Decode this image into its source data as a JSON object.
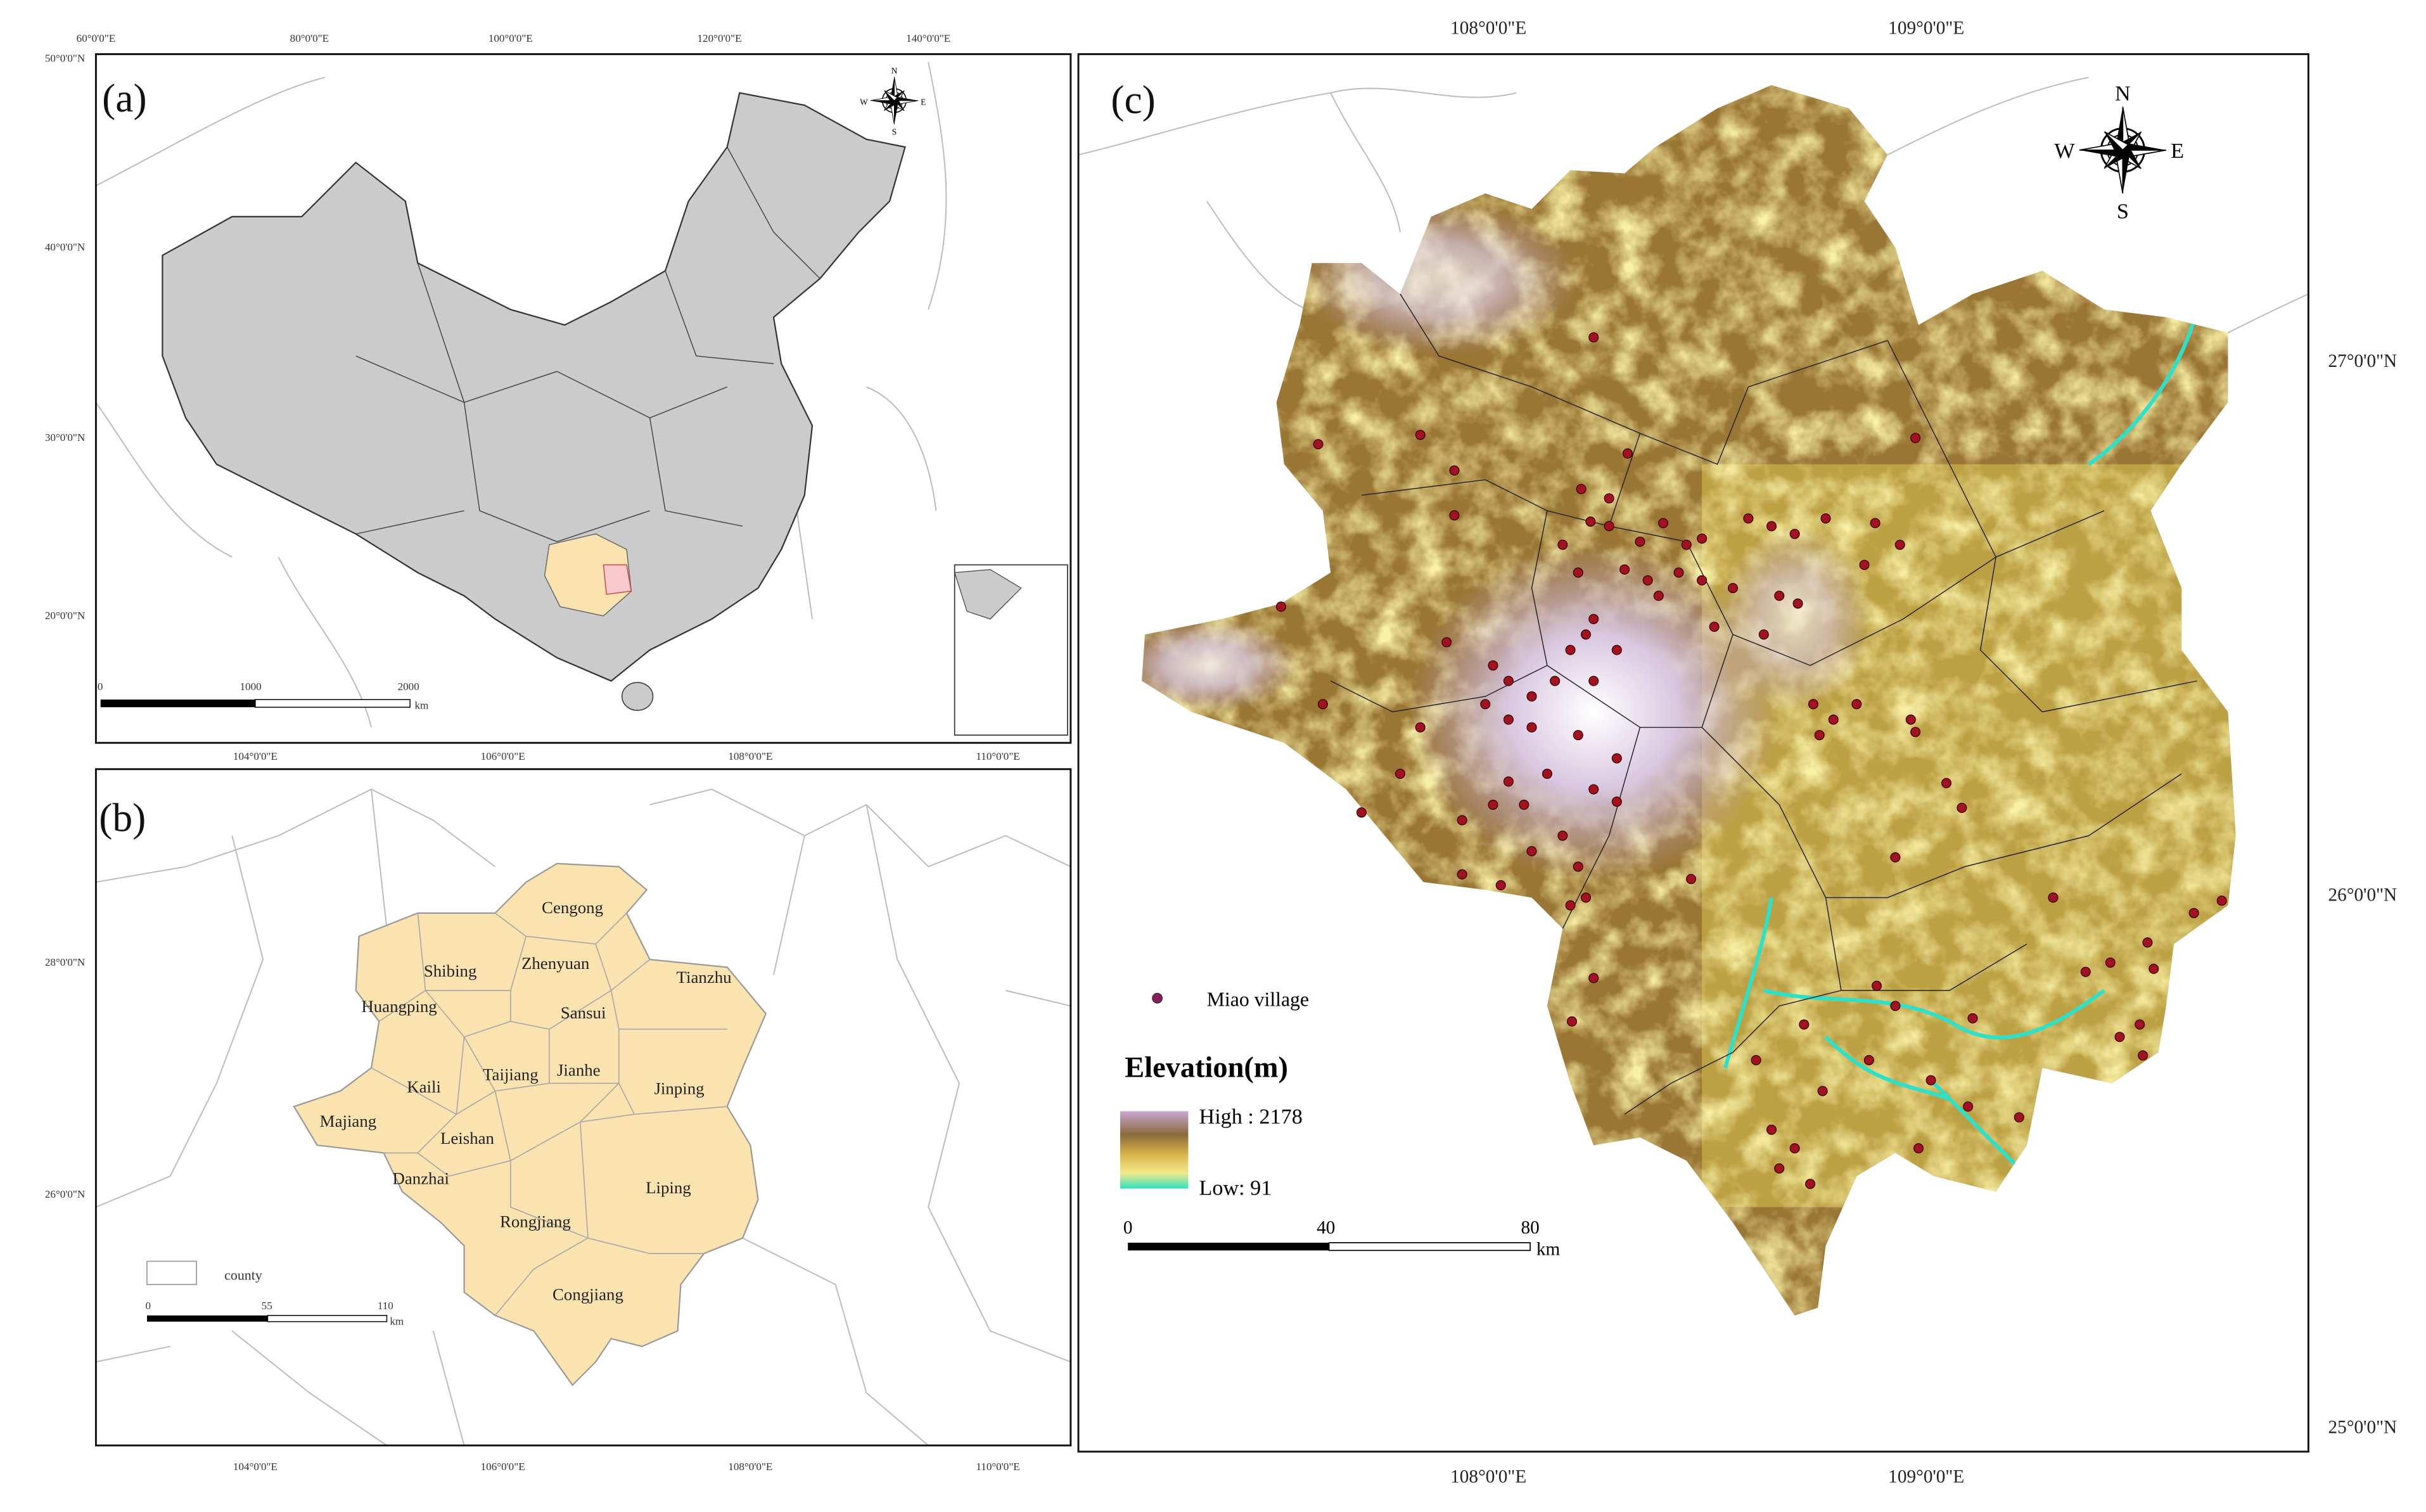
{
  "panel_a": {
    "label": "(a)",
    "lon_labels": [
      "60°0'0\"E",
      "80°0'0\"E",
      "100°0'0\"E",
      "120°0'0\"E",
      "140°0'0\"E"
    ],
    "lat_labels": [
      "50°0'0\"N",
      "40°0'0\"N",
      "30°0'0\"N",
      "20°0'0\"N"
    ],
    "compass": {
      "n": "N",
      "w": "W",
      "e": "E",
      "s": "S"
    },
    "scale_labels": [
      "0",
      "1000",
      "2000"
    ],
    "scale_unit": "km"
  },
  "panel_b": {
    "label": "(b)",
    "lon_labels_top": [
      "104°0'0\"E",
      "106°0'0\"E",
      "108°0'0\"E",
      "110°0'0\"E"
    ],
    "lon_labels_bottom": [
      "104°0'0\"E",
      "106°0'0\"E",
      "108°0'0\"E",
      "110°0'0\"E"
    ],
    "lat_labels": [
      "28°0'0\"N",
      "26°0'0\"N"
    ],
    "counties": [
      "Cengong",
      "Shibing",
      "Zhenyuan",
      "Tianzhu",
      "Huangping",
      "Sansui",
      "Kaili",
      "Taijiang",
      "Jianhe",
      "Jinping",
      "Majiang",
      "Leishan",
      "Danzhai",
      "Liping",
      "Rongjiang",
      "Congjiang"
    ],
    "legend": "county",
    "scale_labels": [
      "0",
      "55",
      "110"
    ],
    "scale_unit": "km"
  },
  "panel_c": {
    "label": "(c)",
    "lon_labels_top": [
      "108°0'0\"E",
      "109°0'0\"E"
    ],
    "lon_labels_bottom": [
      "108°0'0\"E",
      "109°0'0\"E"
    ],
    "lat_labels": [
      "27°0'0\"N",
      "26°0'0\"N",
      "25°0'0\"N"
    ],
    "compass": {
      "n": "N",
      "w": "W",
      "e": "E",
      "s": "S"
    },
    "legend_village": "Miao village",
    "legend_title": "Elevation(m)",
    "legend_high": "High : 2178",
    "legend_low": "Low: 91",
    "scale_labels": [
      "0",
      "40",
      "80"
    ],
    "scale_unit": "km"
  }
}
